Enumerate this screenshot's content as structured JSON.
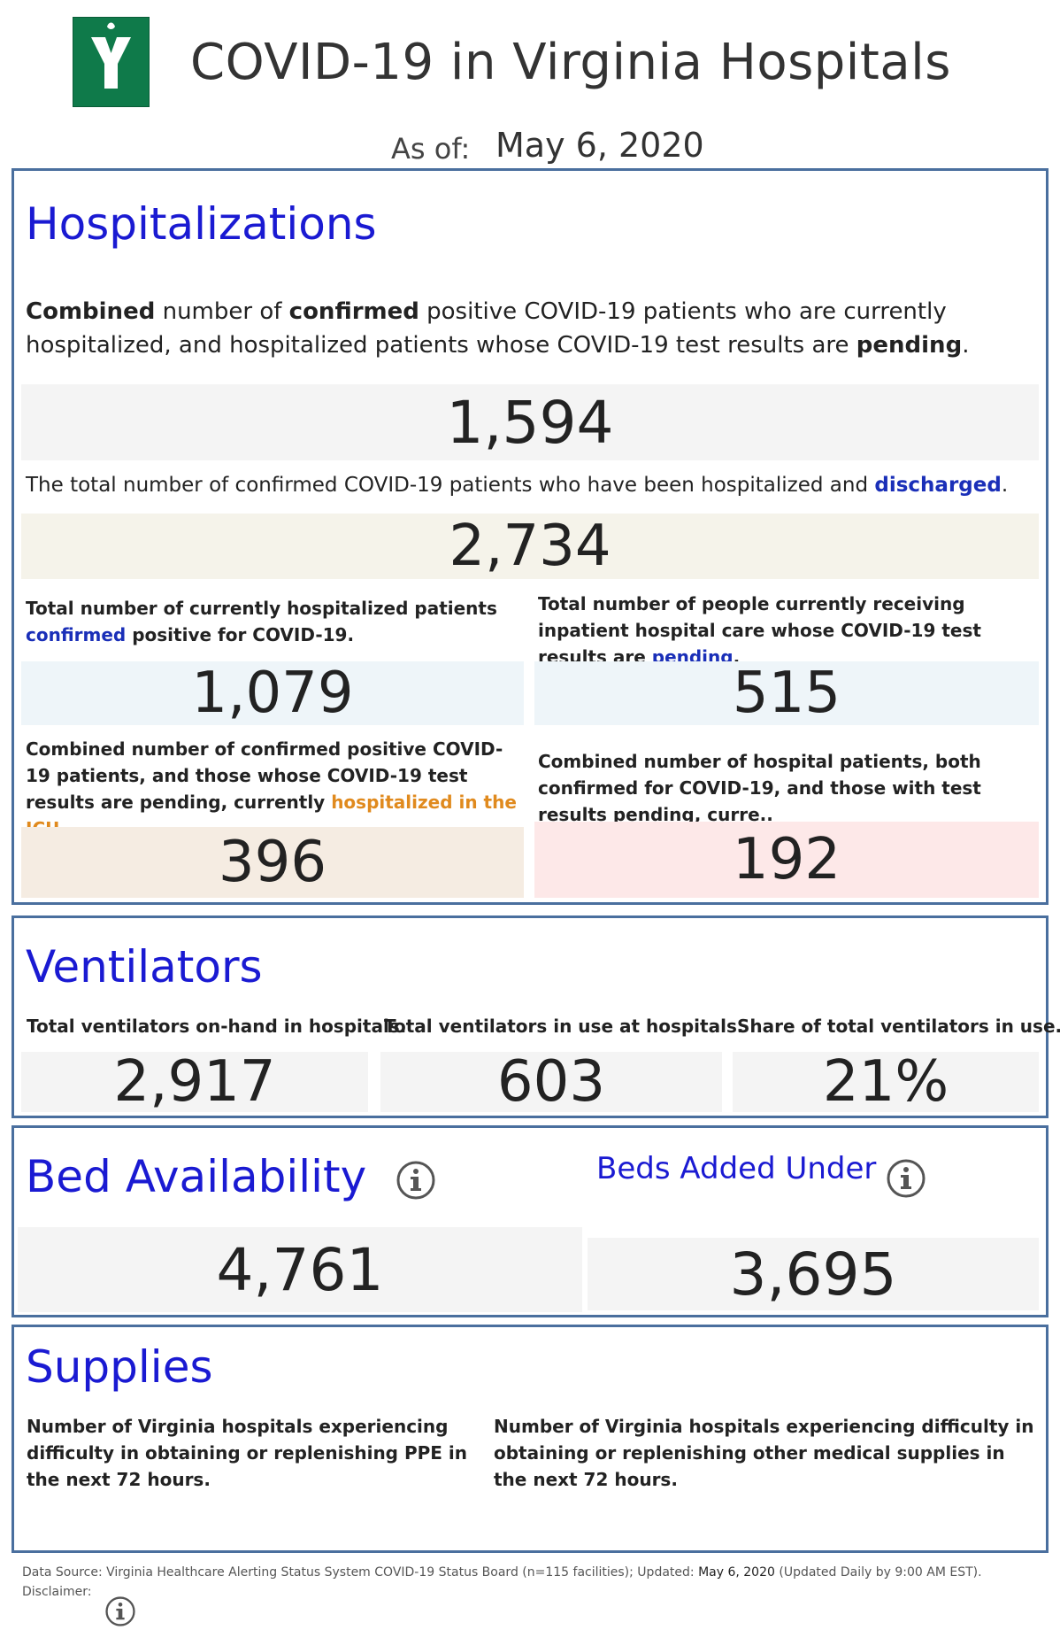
{
  "header": {
    "title": "COVID-19 in Virginia Hospitals",
    "as_of_label": "As of:",
    "as_of_date": "May 6, 2020"
  },
  "hospitalizations": {
    "heading": "Hospitalizations",
    "combined_desc": {
      "part1": "Combined",
      "part2": " number of ",
      "part3": "confirmed",
      "part4": " positive COVID-19 patients who are currently hospitalized, and hospitalized patients whose COVID-19 test results are ",
      "part5": "pending",
      "part6": "."
    },
    "combined_value": "1,594",
    "discharged_desc": {
      "part1": "The total number of confirmed COVID-19 patients who have been hospitalized and ",
      "part2": "discharged",
      "part3": "."
    },
    "discharged_value": "2,734",
    "confirmed_desc": {
      "part1": "Total number of currently hospitalized patients ",
      "part2": "confirmed",
      "part3": " positive for COVID-19."
    },
    "confirmed_value": "1,079",
    "pending_desc": {
      "part1": "Total number of people currently receiving inpatient hospital care whose COVID-19 test results are ",
      "part2": "pending",
      "part3": "."
    },
    "pending_value": "515",
    "icu_desc": {
      "part1": "Combined number of confirmed positive COVID-19 patients, and those whose COVID-19 test results are pending, currently ",
      "part2": "hospitalized in the ICU."
    },
    "icu_value": "396",
    "vent_patients_desc": "Combined number of hospital patients, both confirmed for COVID-19, and those with test results pending, curre..",
    "vent_patients_value": "192"
  },
  "ventilators": {
    "heading": "Ventilators",
    "on_hand_label": "Total ventilators on-hand in hospitals.",
    "on_hand_value": "2,917",
    "in_use_label": "Total ventilators in use at hospitals.",
    "in_use_value": "603",
    "share_label": "Share of total ventilators in use.",
    "share_value": "21%"
  },
  "beds": {
    "heading": "Bed Availability",
    "available_value": "4,761",
    "added_heading": "Beds Added Under",
    "added_value": "3,695"
  },
  "supplies": {
    "heading": "Supplies",
    "ppe_label": "Number of Virginia hospitals experiencing difficulty in obtaining or replenishing PPE in the next 72 hours.",
    "other_label": "Number of Virginia hospitals experiencing difficulty in obtaining or replenishing other medical supplies in the next 72 hours."
  },
  "footer": {
    "source_prefix": "Data Source: Virginia Healthcare Alerting Status System COVID-19 Status Board (n=115 facilities); Updated: ",
    "updated_date": "May 6, 2020",
    "source_suffix": " (Updated Daily by 9:00 AM EST).",
    "disclaimer_label": "Disclaimer:"
  },
  "colors": {
    "heading_blue": "#1a1ad2",
    "panel_border": "#4a6f9e",
    "logo_green": "#0f7a4a",
    "highlight_orange": "#e08a1e",
    "bg_gray": "#f4f4f4",
    "bg_cream": "#f5f3ea",
    "bg_lightblue": "#eef5f9",
    "bg_tan": "#f5ece2",
    "bg_pink": "#fde8e8"
  },
  "icons": [
    "virginia-logo-icon",
    "info-icon"
  ]
}
